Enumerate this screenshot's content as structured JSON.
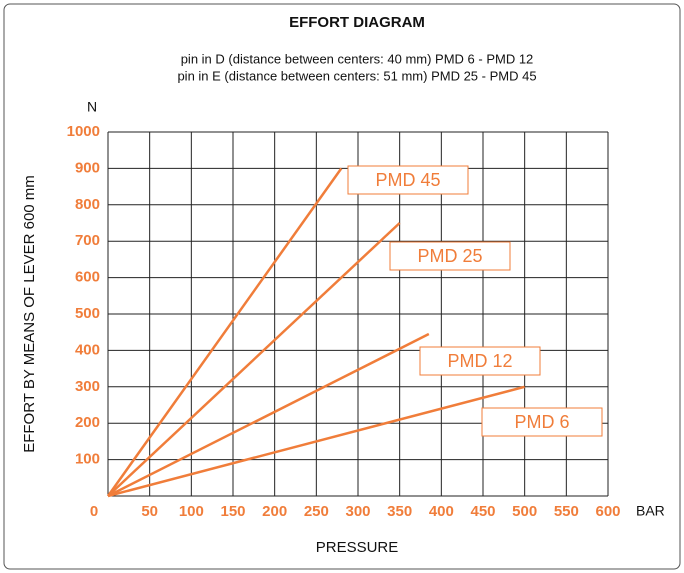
{
  "chart_data": {
    "type": "line",
    "title": "EFFORT DIAGRAM",
    "subtitle": [
      "pin in D (distance between centers: 40 mm) PMD 6 - PMD 12",
      "pin in E (distance between centers: 51 mm) PMD 25 - PMD 45"
    ],
    "x_label": "PRESSURE",
    "x_unit": "BAR",
    "y_label": "EFFORT BY MEANS OF LEVER 600 mm",
    "y_unit": "N",
    "xlim": [
      0,
      600
    ],
    "xticks": [
      0,
      50,
      100,
      150,
      200,
      250,
      300,
      350,
      400,
      450,
      500,
      550,
      600
    ],
    "ylim": [
      0,
      1000
    ],
    "yticks": [
      100,
      200,
      300,
      400,
      500,
      600,
      700,
      800,
      900,
      1000
    ],
    "grid": true,
    "series": [
      {
        "name": "PMD 45",
        "color": "#f07d3a",
        "x": [
          0,
          280
        ],
        "values": [
          0,
          900
        ]
      },
      {
        "name": "PMD 25",
        "color": "#f07d3a",
        "x": [
          0,
          350
        ],
        "values": [
          0,
          750
        ]
      },
      {
        "name": "PMD 12",
        "color": "#f07d3a",
        "x": [
          0,
          385
        ],
        "values": [
          0,
          445
        ]
      },
      {
        "name": "PMD 6",
        "color": "#f07d3a",
        "x": [
          0,
          500
        ],
        "values": [
          0,
          300
        ]
      }
    ]
  }
}
